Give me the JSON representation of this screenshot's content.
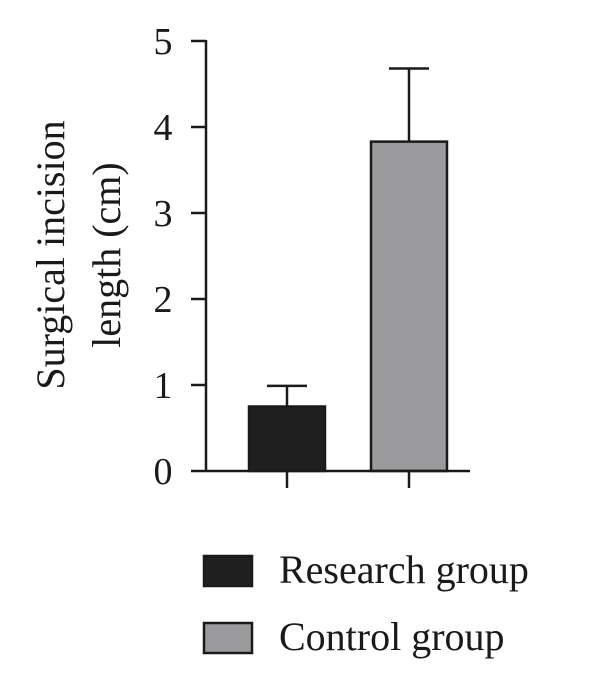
{
  "chart_data": {
    "type": "bar",
    "categories": [
      "Research group",
      "Control group"
    ],
    "values": [
      0.75,
      3.83
    ],
    "error_upper": [
      0.99,
      4.68
    ],
    "colors": [
      "#1f1f1f",
      "#9b9b9d"
    ],
    "ylabel_lines": [
      "Surgical incision",
      "length (cm)"
    ],
    "ylim": [
      0,
      5
    ],
    "yticks": [
      0,
      1,
      2,
      3,
      4,
      5
    ],
    "grid": false,
    "legend_placement": "bottom",
    "legend": [
      {
        "label": "Research group",
        "color": "#1f1f1f"
      },
      {
        "label": "Control group",
        "color": "#9b9b9d"
      }
    ]
  }
}
